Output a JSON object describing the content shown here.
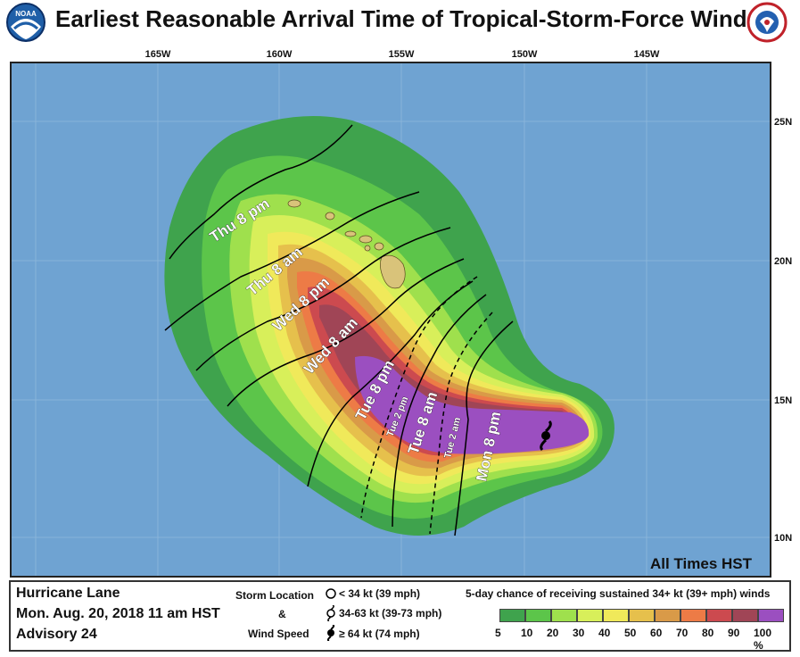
{
  "header": {
    "title": "Earliest Reasonable Arrival Time of Tropical-Storm-Force Winds",
    "noaa_logo_text": "NOAA",
    "nws_logo_text": "NATIONAL WEATHER SERVICE"
  },
  "map": {
    "ocean_color": "#6fa3d2",
    "land_color": "#d9c37a",
    "frame_color": "#222222",
    "longitude_labels": [
      "165W",
      "160W",
      "155W",
      "150W",
      "145W"
    ],
    "latitude_labels": [
      "25N",
      "20N",
      "15N",
      "10N"
    ],
    "times_label": "All Times HST",
    "contour_labels_major": [
      "Thu 8 pm",
      "Thu 8 am",
      "Wed 8 pm",
      "Wed 8 am",
      "Tue 8 pm",
      "Tue 8 am",
      "Mon 8 pm"
    ],
    "contour_labels_minor": [
      "Tue 2 pm",
      "Tue 2 am"
    ],
    "storm_icon": "hurricane-symbol-icon"
  },
  "legend": {
    "storm_name": "Hurricane Lane",
    "issued": "Mon. Aug. 20, 2018  11 am HST",
    "advisory": "Advisory 24",
    "storm_location_label": "Storm Location",
    "ampersand": "&",
    "wind_speed_label": "Wind Speed",
    "categories": [
      {
        "icon": "open-circle-icon",
        "label": "< 34 kt (39 mph)"
      },
      {
        "icon": "tropical-storm-symbol-icon",
        "label": "34-63 kt (39-73 mph)"
      },
      {
        "icon": "hurricane-symbol-icon",
        "label": "≥ 64 kt (74 mph)"
      }
    ],
    "probability_title": "5-day chance of receiving sustained 34+ kt (39+ mph) winds",
    "probability_colors": [
      "#3fa34d",
      "#5cc54a",
      "#9fe04d",
      "#d8ef5a",
      "#f0e95a",
      "#e6c04c",
      "#d99a48",
      "#ed7b46",
      "#cc4a4f",
      "#a04556",
      "#9b4fc0"
    ],
    "probability_labels": [
      "5",
      "10",
      "20",
      "30",
      "40",
      "50",
      "60",
      "70",
      "80",
      "90",
      "100 %"
    ]
  }
}
